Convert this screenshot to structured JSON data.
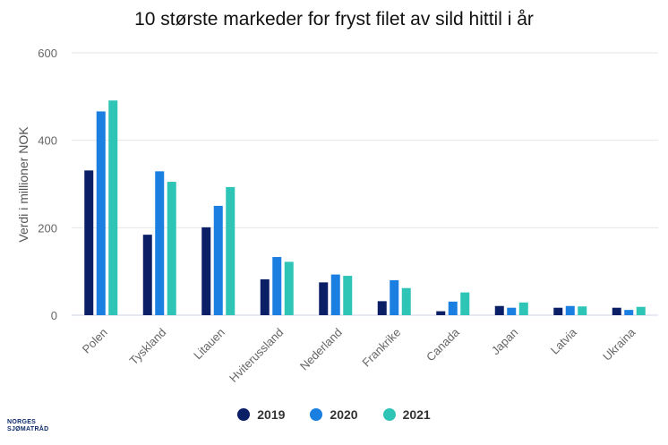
{
  "chart_data": {
    "type": "bar",
    "title": "10 største markeder for fryst filet av sild hittil i år",
    "xlabel": "",
    "ylabel": "Verdi i millioner NOK",
    "ylim": [
      0,
      600
    ],
    "yticks": [
      0,
      200,
      400,
      600
    ],
    "grid": true,
    "legend_position": "bottom",
    "categories": [
      "Polen",
      "Tyskland",
      "Litauen",
      "Hviterussland",
      "Nederland",
      "Frankrike",
      "Canada",
      "Japan",
      "Latvia",
      "Ukraina"
    ],
    "series": [
      {
        "name": "2019",
        "color": "#0b1f66",
        "values": [
          331,
          184,
          201,
          82,
          75,
          32,
          9,
          21,
          17,
          17
        ]
      },
      {
        "name": "2020",
        "color": "#1a7fe0",
        "values": [
          466,
          329,
          250,
          133,
          93,
          80,
          31,
          17,
          21,
          12
        ]
      },
      {
        "name": "2021",
        "color": "#2ec4b6",
        "values": [
          491,
          305,
          293,
          122,
          90,
          62,
          52,
          29,
          20,
          19
        ]
      }
    ]
  },
  "brand": {
    "line1": "NORGES",
    "line2": "SJØMATRÅD"
  }
}
